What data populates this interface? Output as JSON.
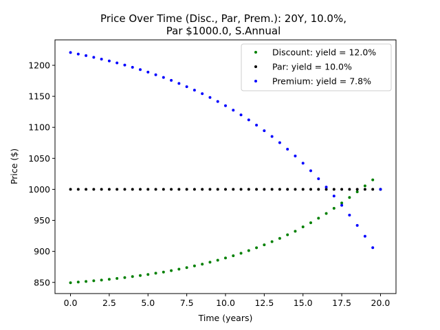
{
  "chart_data": {
    "type": "scatter",
    "title_line1": "Price Over Time (Disc., Par, Prem.): 20Y, 10.0%,",
    "title_line2": "Par $1000.0, S.Annual",
    "xlabel": "Time (years)",
    "ylabel": "Price ($)",
    "xlim": [
      -1.0,
      21.0
    ],
    "ylim": [
      832,
      1241
    ],
    "xticks": [
      0.0,
      2.5,
      5.0,
      7.5,
      10.0,
      12.5,
      15.0,
      17.5,
      20.0
    ],
    "xtick_labels": [
      "0.0",
      "2.5",
      "5.0",
      "7.5",
      "10.0",
      "12.5",
      "15.0",
      "17.5",
      "20.0"
    ],
    "yticks": [
      850,
      900,
      950,
      1000,
      1050,
      1100,
      1150,
      1200
    ],
    "ytick_labels": [
      "850",
      "900",
      "950",
      "1000",
      "1050",
      "1100",
      "1150",
      "1200"
    ],
    "grid": false,
    "legend": "top-right",
    "coupon_rate": 0.1,
    "par": 1000.0,
    "periods_per_year": 2,
    "maturity_years": 20,
    "series": [
      {
        "name": "Discount: yield = 12.0%",
        "yield": 0.12,
        "color": "#008000",
        "x": [
          0.0,
          0.5,
          1.0,
          1.5,
          2.0,
          2.5,
          3.0,
          3.5,
          4.0,
          4.5,
          5.0,
          5.5,
          6.0,
          6.5,
          7.0,
          7.5,
          8.0,
          8.5,
          9.0,
          9.5,
          10.0,
          10.5,
          11.0,
          11.5,
          12.0,
          12.5,
          13.0,
          13.5,
          14.0,
          14.5,
          15.0,
          15.5,
          16.0,
          16.5,
          17.0,
          17.5,
          18.0,
          18.5,
          19.0,
          19.5,
          20.0
        ],
        "y": [
          849.5,
          850.5,
          851.5,
          852.6,
          853.8,
          855.0,
          856.4,
          857.8,
          859.4,
          861.1,
          862.8,
          864.8,
          866.7,
          869.0,
          871.4,
          873.9,
          876.6,
          879.4,
          882.6,
          885.7,
          889.3,
          893.0,
          897.0,
          901.3,
          905.8,
          910.5,
          915.7,
          921.0,
          926.8,
          932.4,
          939.5,
          946.2,
          953.5,
          961.1,
          969.4,
          978.0,
          986.9,
          996.1,
          1005.6,
          1015.3,
          1000.0
        ]
      },
      {
        "name": "Par: yield = 10.0%",
        "yield": 0.1,
        "color": "#000000",
        "x": [
          0.0,
          0.5,
          1.0,
          1.5,
          2.0,
          2.5,
          3.0,
          3.5,
          4.0,
          4.5,
          5.0,
          5.5,
          6.0,
          6.5,
          7.0,
          7.5,
          8.0,
          8.5,
          9.0,
          9.5,
          10.0,
          10.5,
          11.0,
          11.5,
          12.0,
          12.5,
          13.0,
          13.5,
          14.0,
          14.5,
          15.0,
          15.5,
          16.0,
          16.5,
          17.0,
          17.5,
          18.0,
          18.5,
          19.0,
          19.5,
          20.0
        ],
        "y": [
          1000,
          1000,
          1000,
          1000,
          1000,
          1000,
          1000,
          1000,
          1000,
          1000,
          1000,
          1000,
          1000,
          1000,
          1000,
          1000,
          1000,
          1000,
          1000,
          1000,
          1000,
          1000,
          1000,
          1000,
          1000,
          1000,
          1000,
          1000,
          1000,
          1000,
          1000,
          1000,
          1000,
          1000,
          1000,
          1000,
          1000,
          1000,
          1000,
          1000,
          1000
        ]
      },
      {
        "name": "Premium: yield = 7.8%",
        "yield": 0.078,
        "color": "#0000ff",
        "x": [
          0.0,
          0.5,
          1.0,
          1.5,
          2.0,
          2.5,
          3.0,
          3.5,
          4.0,
          4.5,
          5.0,
          5.5,
          6.0,
          6.5,
          7.0,
          7.5,
          8.0,
          8.5,
          9.0,
          9.5,
          10.0,
          10.5,
          11.0,
          11.5,
          12.0,
          12.5,
          13.0,
          13.5,
          14.0,
          14.5,
          15.0,
          15.5,
          16.0,
          16.5,
          17.0,
          17.5,
          18.0,
          18.5,
          19.0,
          19.5,
          20.0
        ],
        "y": [
          1220.6,
          1218.1,
          1215.6,
          1212.9,
          1210.0,
          1207.0,
          1203.8,
          1200.4,
          1196.8,
          1193.0,
          1189.0,
          1184.8,
          1180.4,
          1175.7,
          1170.8,
          1165.5,
          1160.0,
          1154.2,
          1148.1,
          1141.6,
          1134.8,
          1127.6,
          1120.0,
          1112.0,
          1103.5,
          1094.6,
          1085.2,
          1075.3,
          1064.8,
          1053.8,
          1042.2,
          1030.0,
          1017.1,
          1003.6,
          989.3,
          974.3,
          958.5,
          941.9,
          924.4,
          906.0,
          1000.0
        ]
      }
    ]
  }
}
